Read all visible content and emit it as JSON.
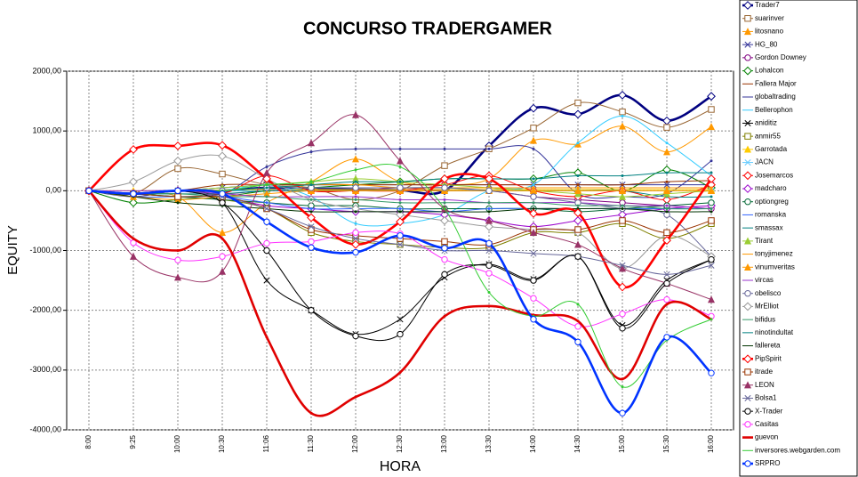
{
  "chart_data": {
    "type": "line",
    "title": "CONCURSO TRADERGAMER",
    "x_label": "HORA",
    "y_label": "EQUITY",
    "categories": [
      "8:00",
      "9:25",
      "10:00",
      "10:30",
      "11:06",
      "11:30",
      "12:00",
      "12:30",
      "13:00",
      "13:30",
      "14:00",
      "14:30",
      "15:00",
      "15:30",
      "16:00"
    ],
    "ylim": [
      -4000,
      2000
    ],
    "yticks": [
      {
        "value": -4000,
        "label": "-4000,00"
      },
      {
        "value": -3000,
        "label": "-3000,00"
      },
      {
        "value": -2000,
        "label": "-2000,00"
      },
      {
        "value": -1000,
        "label": "-1000,00"
      },
      {
        "value": 0,
        "label": "0,00"
      },
      {
        "value": 1000,
        "label": "1000,00"
      },
      {
        "value": 2000,
        "label": "2000,00"
      }
    ],
    "grid": true,
    "legend": "right",
    "smooth": true,
    "series": [
      {
        "name": "Trader7",
        "color": "#000080",
        "marker": "diamond",
        "thick": true,
        "values": [
          0,
          -50,
          0,
          0,
          50,
          30,
          20,
          10,
          0,
          750,
          1380,
          1280,
          1600,
          1170,
          1580
        ]
      },
      {
        "name": "suarinver",
        "color": "#996633",
        "marker": "square",
        "values": [
          0,
          -50,
          370,
          280,
          100,
          50,
          -150,
          0,
          420,
          700,
          1050,
          1470,
          1320,
          1060,
          1360
        ]
      },
      {
        "name": "litosnano",
        "color": "#ff9900",
        "marker": "triangle",
        "values": [
          0,
          -50,
          -100,
          -700,
          -200,
          150,
          530,
          150,
          100,
          200,
          840,
          780,
          1080,
          650,
          1070
        ]
      },
      {
        "name": "HG_80",
        "color": "#333399",
        "marker": "x",
        "values": [
          0,
          -50,
          0,
          50,
          100,
          100,
          100,
          100,
          100,
          100,
          100,
          100,
          100,
          100,
          100
        ]
      },
      {
        "name": "Gordon Downey",
        "color": "#800080",
        "marker": "circle",
        "values": [
          0,
          -50,
          0,
          -50,
          0,
          0,
          0,
          50,
          0,
          0,
          -100,
          -150,
          -200,
          -250,
          -300
        ]
      },
      {
        "name": "Lohalcon",
        "color": "#008000",
        "marker": "diamond",
        "values": [
          0,
          -200,
          -150,
          -100,
          0,
          50,
          100,
          150,
          200,
          200,
          200,
          300,
          0,
          350,
          50
        ]
      },
      {
        "name": "Fallera Major",
        "color": "#993300",
        "marker": "none",
        "values": [
          0,
          -50,
          0,
          100,
          100,
          100,
          100,
          100,
          100,
          100,
          100,
          100,
          100,
          150,
          170
        ]
      },
      {
        "name": "globaltrading",
        "color": "#333399",
        "marker": "none",
        "values": [
          0,
          -100,
          0,
          -50,
          400,
          650,
          700,
          700,
          700,
          700,
          700,
          -50,
          -100,
          -50,
          500
        ]
      },
      {
        "name": "Bellerophon",
        "color": "#33ccff",
        "marker": "none",
        "values": [
          0,
          -50,
          0,
          0,
          100,
          -100,
          -550,
          -550,
          -400,
          0,
          100,
          800,
          1250,
          800,
          250
        ]
      },
      {
        "name": "aniditiz",
        "color": "#000000",
        "marker": "x",
        "values": [
          0,
          -50,
          0,
          -200,
          -1500,
          -2000,
          -2400,
          -2150,
          -1450,
          -1230,
          -1480,
          -1100,
          -2250,
          -1500,
          -1150
        ]
      },
      {
        "name": "anmir55",
        "color": "#808000",
        "marker": "square",
        "values": [
          0,
          -50,
          -100,
          -150,
          -300,
          -700,
          -850,
          -900,
          -950,
          -950,
          -700,
          -700,
          -550,
          -800,
          -550
        ]
      },
      {
        "name": "Garrotada",
        "color": "#ffcc00",
        "marker": "triangle",
        "values": [
          0,
          0,
          0,
          10,
          20,
          20,
          20,
          20,
          20,
          20,
          20,
          20,
          20,
          20,
          20
        ]
      },
      {
        "name": "JACN",
        "color": "#66ccff",
        "marker": "x",
        "values": [
          0,
          -50,
          0,
          0,
          0,
          50,
          50,
          50,
          50,
          0,
          0,
          0,
          0,
          0,
          0
        ]
      },
      {
        "name": "Josemarcos",
        "color": "#ff0000",
        "marker": "diamond",
        "values": [
          0,
          -50,
          0,
          -50,
          250,
          0,
          0,
          0,
          100,
          250,
          0,
          -100,
          0,
          -150,
          100
        ]
      },
      {
        "name": "madcharo",
        "color": "#9900cc",
        "marker": "diamond",
        "values": [
          0,
          -50,
          0,
          -100,
          -250,
          -300,
          -350,
          -350,
          -400,
          -500,
          -600,
          -500,
          -400,
          -300,
          -250
        ]
      },
      {
        "name": "optiongreg",
        "color": "#006633",
        "marker": "circle",
        "values": [
          0,
          -50,
          -100,
          -150,
          -200,
          -250,
          -250,
          -300,
          -300,
          -300,
          -300,
          -350,
          -300,
          -250,
          -200
        ]
      },
      {
        "name": "romanska",
        "color": "#3366ff",
        "marker": "none",
        "values": [
          0,
          -100,
          -100,
          -100,
          -200,
          -300,
          -300,
          -300,
          -350,
          -300,
          -300,
          -300,
          -300,
          -300,
          -300
        ]
      },
      {
        "name": "smassax",
        "color": "#008080",
        "marker": "none",
        "values": [
          0,
          -50,
          -50,
          -50,
          0,
          0,
          0,
          0,
          0,
          0,
          0,
          0,
          0,
          -100,
          -100
        ]
      },
      {
        "name": "Tirant",
        "color": "#9acd32",
        "marker": "triangle",
        "values": [
          0,
          -50,
          0,
          50,
          100,
          150,
          200,
          150,
          100,
          50,
          0,
          -50,
          -100,
          -50,
          0
        ]
      },
      {
        "name": "tonyjimenez",
        "color": "#ff9900",
        "marker": "none",
        "values": [
          0,
          -50,
          0,
          0,
          50,
          100,
          100,
          50,
          50,
          50,
          50,
          50,
          50,
          50,
          50
        ]
      },
      {
        "name": "vinumveritas",
        "color": "#ff9900",
        "marker": "triangle",
        "values": [
          0,
          -100,
          -150,
          -100,
          -50,
          0,
          0,
          0,
          0,
          0,
          0,
          0,
          0,
          0,
          0
        ]
      },
      {
        "name": "vircas",
        "color": "#9933cc",
        "marker": "none",
        "values": [
          0,
          0,
          0,
          -50,
          -100,
          -100,
          -100,
          -150,
          -150,
          -200,
          -200,
          -200,
          -250,
          -250,
          -300
        ]
      },
      {
        "name": "obelisco",
        "color": "#666699",
        "marker": "circle",
        "values": [
          0,
          -50,
          0,
          0,
          50,
          50,
          50,
          50,
          50,
          0,
          -100,
          -200,
          -300,
          -400,
          -1100
        ]
      },
      {
        "name": "MrElliot",
        "color": "#999999",
        "marker": "diamond",
        "values": [
          0,
          150,
          500,
          580,
          200,
          -150,
          -300,
          -400,
          -500,
          -600,
          -650,
          -700,
          -1300,
          -750,
          -1100
        ]
      },
      {
        "name": "bifidus",
        "color": "#339966",
        "marker": "none",
        "values": [
          0,
          -50,
          -50,
          -100,
          -100,
          -150,
          -150,
          -200,
          -200,
          -200,
          -200,
          -250,
          -250,
          -300,
          -300
        ]
      },
      {
        "name": "ninotindultat",
        "color": "#008080",
        "marker": "none",
        "values": [
          0,
          -50,
          0,
          0,
          50,
          100,
          150,
          150,
          200,
          200,
          200,
          250,
          250,
          300,
          300
        ]
      },
      {
        "name": "fallereta",
        "color": "#003300",
        "marker": "none",
        "values": [
          0,
          -100,
          -200,
          -250,
          -300,
          -350,
          -350,
          -350,
          -350,
          -350,
          -300,
          -300,
          -300,
          -350,
          -350
        ]
      },
      {
        "name": "PipSpirit",
        "color": "#ff0000",
        "marker": "diamond",
        "thick": true,
        "values": [
          0,
          690,
          750,
          760,
          200,
          -450,
          -900,
          -520,
          200,
          200,
          -380,
          -370,
          -1610,
          -830,
          200
        ]
      },
      {
        "name": "itrade",
        "color": "#993300",
        "marker": "square",
        "values": [
          0,
          -50,
          -100,
          -100,
          -300,
          -650,
          -750,
          -800,
          -850,
          -900,
          -650,
          -650,
          -500,
          -700,
          -500
        ]
      },
      {
        "name": "LEON",
        "color": "#993366",
        "marker": "triangle",
        "values": [
          0,
          -1100,
          -1450,
          -1350,
          300,
          800,
          1270,
          500,
          -300,
          -500,
          -700,
          -900,
          -1300,
          -1550,
          -1820
        ]
      },
      {
        "name": "Bolsa1",
        "color": "#666699",
        "marker": "x",
        "values": [
          0,
          -50,
          0,
          -100,
          -300,
          -600,
          -800,
          -900,
          -1000,
          -1000,
          -1050,
          -1100,
          -1250,
          -1400,
          -1250
        ]
      },
      {
        "name": "X-Trader",
        "color": "#000000",
        "marker": "circle",
        "values": [
          0,
          -50,
          0,
          -200,
          -1000,
          -2000,
          -2430,
          -2400,
          -1400,
          -1250,
          -1500,
          -1100,
          -2300,
          -1550,
          -1150
        ]
      },
      {
        "name": "Casitas",
        "color": "#ff33ff",
        "marker": "circle",
        "values": [
          0,
          -870,
          -1160,
          -1100,
          -880,
          -850,
          -700,
          -720,
          -1150,
          -1380,
          -1800,
          -2270,
          -2060,
          -1820,
          -2100
        ]
      },
      {
        "name": "guevon",
        "color": "#e00000",
        "marker": "none",
        "thick": true,
        "values": [
          0,
          -800,
          -1000,
          -800,
          -2450,
          -3720,
          -3450,
          -3040,
          -2100,
          -1930,
          -2080,
          -2180,
          -3150,
          -1900,
          -2150
        ]
      },
      {
        "name": "inversores.webgarden.com",
        "color": "#33cc33",
        "marker": "none",
        "values": [
          0,
          -50,
          0,
          0,
          100,
          150,
          350,
          400,
          -300,
          -1700,
          -2100,
          -1900,
          -3280,
          -2500,
          -2150
        ]
      },
      {
        "name": "SRPRO",
        "color": "#0033ff",
        "marker": "circle",
        "thick": true,
        "values": [
          0,
          -50,
          0,
          -50,
          -520,
          -950,
          -1030,
          -750,
          -960,
          -880,
          -2150,
          -2530,
          -3720,
          -2450,
          -3050
        ]
      }
    ]
  }
}
